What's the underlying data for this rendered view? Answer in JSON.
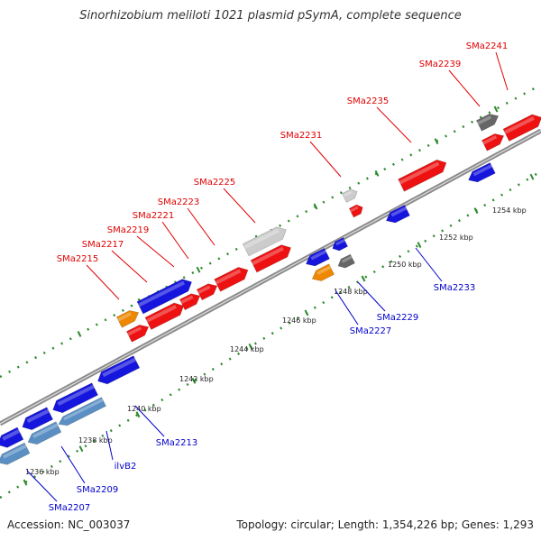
{
  "title": "Sinorhizobium meliloti 1021 plasmid pSymA, complete sequence",
  "footer": {
    "accession": "Accession: NC_003037",
    "summary": "Topology: circular; Length: 1,354,226 bp; Genes: 1,293"
  },
  "colors": {
    "backbone": "#8c8c8c",
    "track_dots": "#2e8b2e",
    "forward_label": "#e00000",
    "reverse_label": "#0000cc",
    "red": "#ee1111",
    "blue": "#1515dd",
    "steel": "#5a8fc4",
    "orange": "#ee8800",
    "lightgray": "#cccccc",
    "darkgray": "#666666"
  },
  "scale_ticks": [
    "1236 kbp",
    "1238 kbp",
    "1240 kbp",
    "1242 kbp",
    "1244 kbp",
    "1246 kbp",
    "1248 kbp",
    "1250 kbp",
    "1252 kbp",
    "1254 kbp"
  ],
  "forward_labels": [
    "SMa2215",
    "SMa2217",
    "SMa2219",
    "SMa2221",
    "SMa2223",
    "SMa2225",
    "SMa2231",
    "SMa2235",
    "SMa2239",
    "SMa2241"
  ],
  "reverse_labels": [
    "SMa2207",
    "SMa2209",
    "ilvB2",
    "SMa2213",
    "SMa2227",
    "SMa2229",
    "SMa2233"
  ]
}
